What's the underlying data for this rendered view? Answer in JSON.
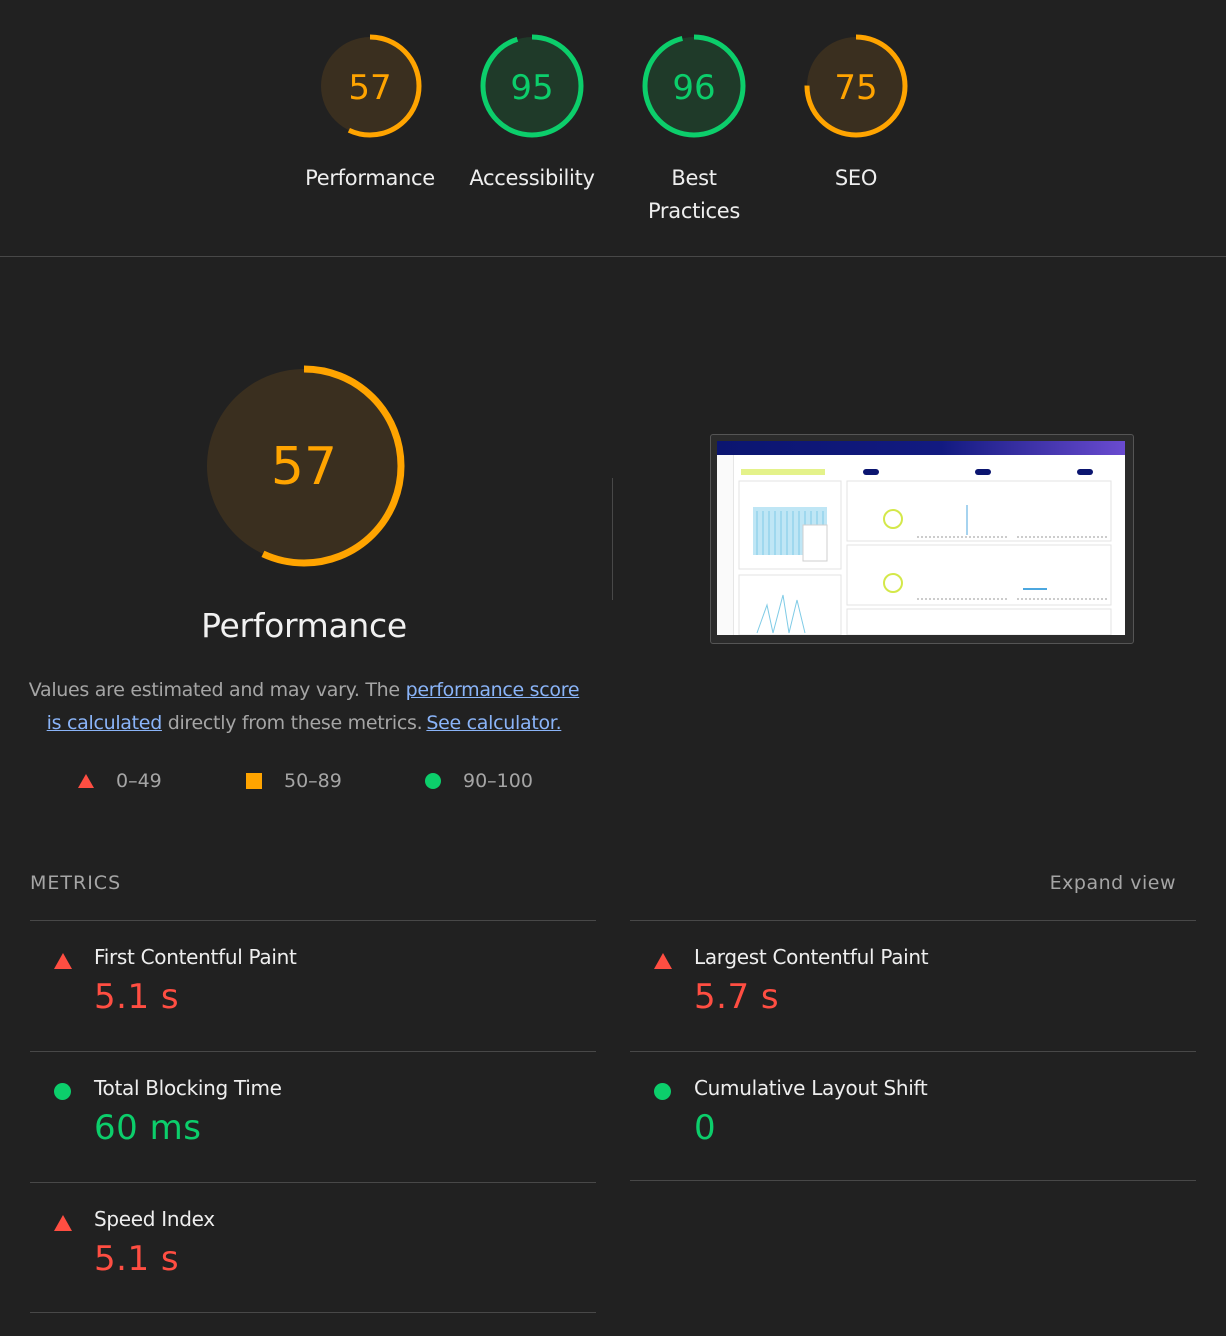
{
  "colors": {
    "fail": "#ff4e42",
    "average": "#ffa400",
    "pass": "#0cce6b",
    "background": "#212121"
  },
  "categories": [
    {
      "label": "Performance",
      "score": "57",
      "rating": "average"
    },
    {
      "label": "Accessibility",
      "score": "95",
      "rating": "pass"
    },
    {
      "label": "Best Practices",
      "score": "96",
      "rating": "pass"
    },
    {
      "label": "SEO",
      "score": "75",
      "rating": "average"
    }
  ],
  "main": {
    "score": "57",
    "title": "Performance",
    "desc_prefix": "Values are estimated and may vary. The ",
    "desc_link": "performance score is calculated",
    "desc_middle": " directly from these metrics.",
    "desc_calc_link": "See calculator.",
    "legend": [
      {
        "icon": "triangle-icon",
        "range": "0–49"
      },
      {
        "icon": "square-icon",
        "range": "50–89"
      },
      {
        "icon": "circle-icon",
        "range": "90–100"
      }
    ]
  },
  "metrics_section": {
    "heading": "METRICS",
    "expand_label": "Expand view",
    "items": [
      {
        "name": "First Contentful Paint",
        "value": "5.1 s",
        "rating": "fail",
        "icon": "triangle-icon"
      },
      {
        "name": "Largest Contentful Paint",
        "value": "5.7 s",
        "rating": "fail",
        "icon": "triangle-icon"
      },
      {
        "name": "Total Blocking Time",
        "value": "60 ms",
        "rating": "pass",
        "icon": "circle-icon"
      },
      {
        "name": "Cumulative Layout Shift",
        "value": "0",
        "rating": "pass",
        "icon": "circle-icon"
      },
      {
        "name": "Speed Index",
        "value": "5.1 s",
        "rating": "fail",
        "icon": "triangle-icon"
      }
    ]
  }
}
